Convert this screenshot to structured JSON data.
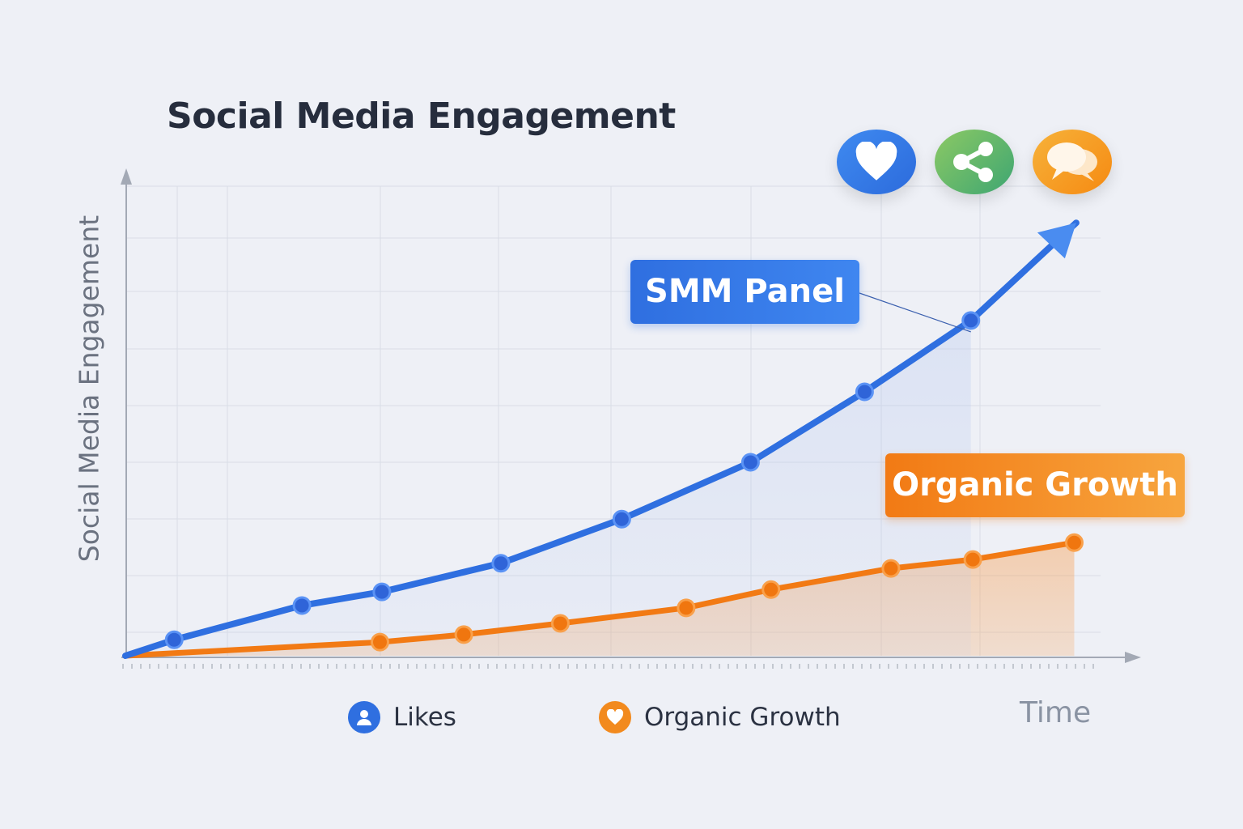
{
  "chart_data": {
    "type": "line",
    "title": "Social Media Engagement",
    "ylabel": "Social Media Engagement",
    "xlabel": "Time",
    "grid": true,
    "legend_position": "bottom",
    "series": [
      {
        "name": "Likes",
        "color": "#2f6fe0",
        "points": [
          [
            0,
            0
          ],
          [
            5.0,
            3.4
          ],
          [
            18.1,
            10.7
          ],
          [
            26.3,
            13.6
          ],
          [
            38.5,
            19.7
          ],
          [
            50.9,
            29.1
          ],
          [
            64.1,
            41.2
          ],
          [
            75.8,
            56.2
          ],
          [
            86.7,
            71.4
          ]
        ],
        "arrow_to": [
          97.5,
          92.2
        ]
      },
      {
        "name": "Organic Growth",
        "color": "#f27a14",
        "points": [
          [
            0,
            0
          ],
          [
            26.1,
            2.9
          ],
          [
            34.7,
            4.5
          ],
          [
            44.6,
            6.9
          ],
          [
            57.5,
            10.2
          ],
          [
            66.2,
            14.1
          ],
          [
            78.5,
            18.6
          ],
          [
            86.9,
            20.5
          ],
          [
            97.3,
            24.1
          ]
        ]
      }
    ],
    "annotations": [
      {
        "text": "SMM Panel",
        "color": "#2f6fe0"
      },
      {
        "text": "Organic Growth",
        "color": "#f27a14"
      }
    ]
  },
  "legend": [
    {
      "label": "Likes",
      "icon": "user-icon",
      "color": "#2f6fe0"
    },
    {
      "label": "Organic Growth",
      "icon": "heart-icon",
      "color": "#f28a1e"
    }
  ],
  "icons": [
    {
      "name": "heart-icon",
      "color": "#2f74e6"
    },
    {
      "name": "share-icon",
      "color": "#4caf6a"
    },
    {
      "name": "comments-icon",
      "color": "#f79a1e"
    }
  ]
}
